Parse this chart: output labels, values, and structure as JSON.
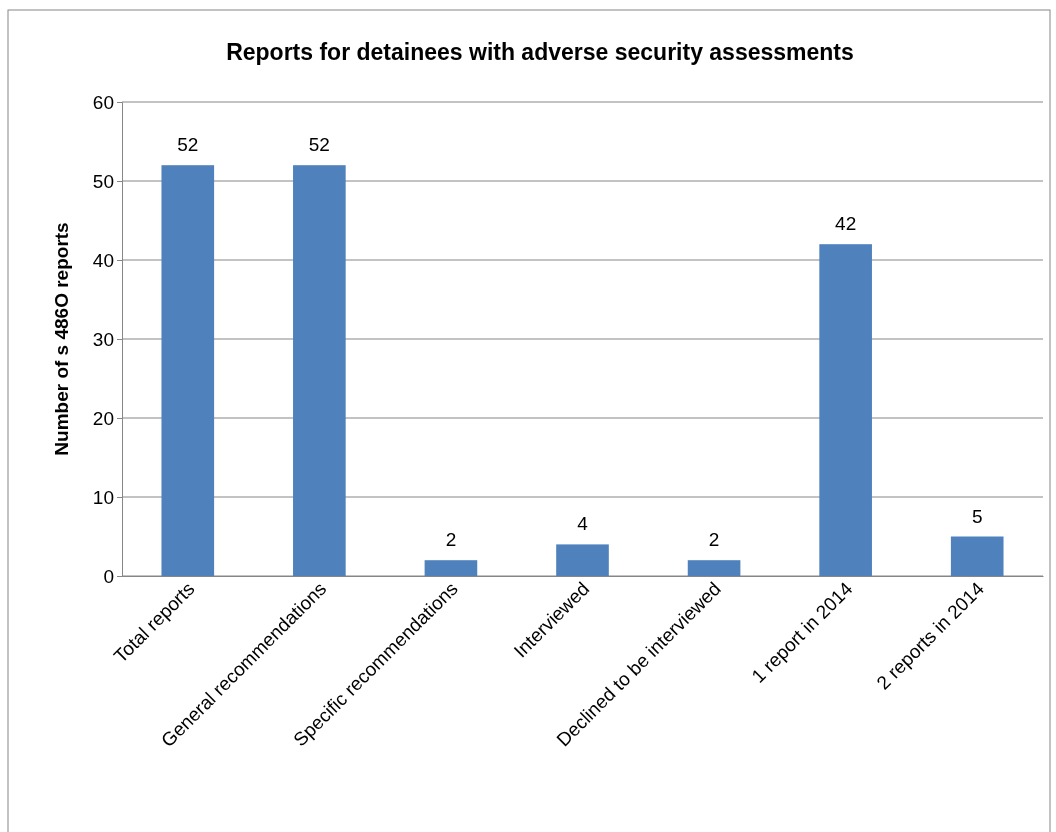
{
  "chart_data": {
    "type": "bar",
    "title": "Reports for detainees with adverse security assessments",
    "ylabel": "Number of s 486O reports",
    "categories": [
      "Total reports",
      "General recommendations",
      "Specific recommendations",
      "Interviewed",
      "Declined to be interviewed",
      "1 report in 2014",
      "2 reports in 2014"
    ],
    "values": [
      52,
      52,
      2,
      4,
      2,
      42,
      5
    ],
    "color": "#4f81bd",
    "ylim": [
      0,
      60
    ],
    "yticks": [
      0,
      10,
      20,
      30,
      40,
      50,
      60
    ],
    "grid": "y",
    "data_labels": true
  }
}
